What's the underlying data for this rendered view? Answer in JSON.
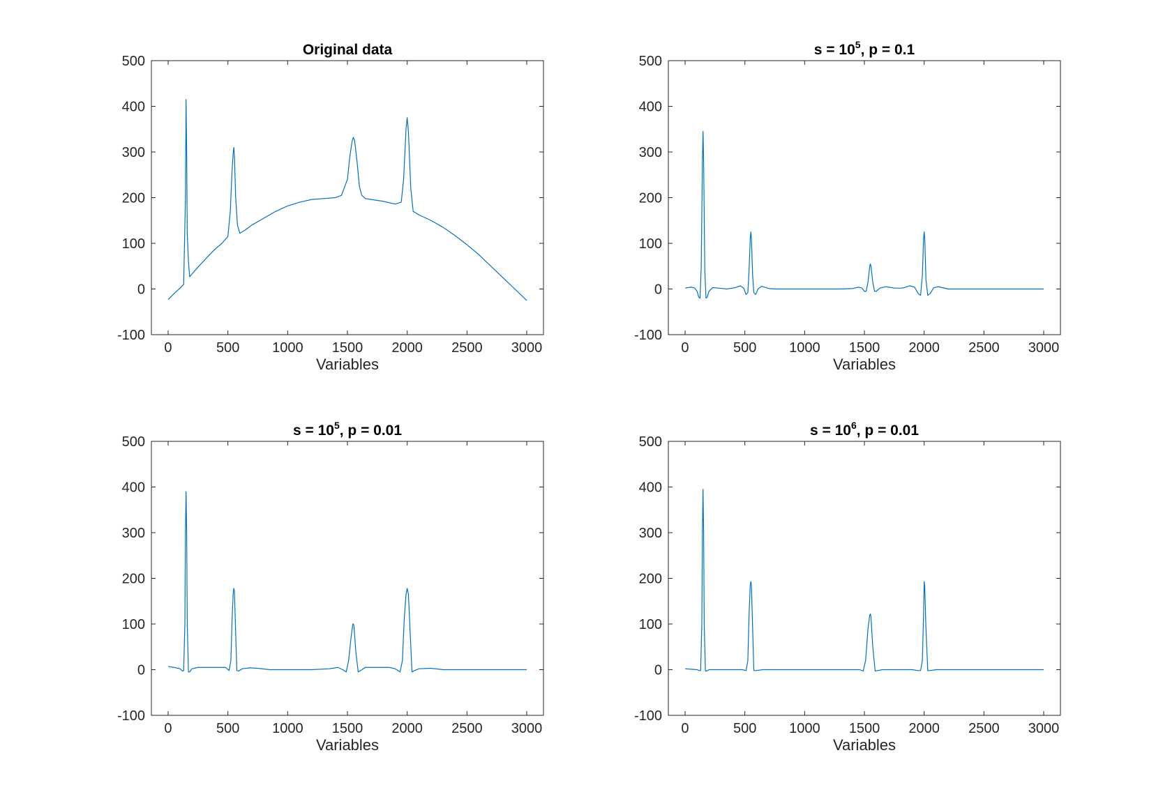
{
  "figure": {
    "background": "#ffffff",
    "line_color": "#0072BD",
    "axis_color": "#262626"
  },
  "chart_data": [
    {
      "type": "line",
      "title": {
        "before": "Original data",
        "sup": "",
        "after": ""
      },
      "xlabel": "Variables",
      "ylabel": "",
      "xlim": [
        -140,
        3140
      ],
      "ylim": [
        -100,
        500
      ],
      "xticks": [
        0,
        500,
        1000,
        1500,
        2000,
        2500,
        3000
      ],
      "yticks": [
        -100,
        0,
        100,
        200,
        300,
        400,
        500
      ],
      "xtick_labels": [
        "0",
        "500",
        "1000",
        "1500",
        "2000",
        "2500",
        "3000"
      ],
      "ytick_labels": [
        "-100",
        "0",
        "100",
        "200",
        "300",
        "400",
        "500"
      ],
      "grid": false,
      "series": [
        {
          "color": "#0072BD",
          "x": [
            0,
            50,
            100,
            130,
            145,
            150,
            155,
            160,
            170,
            180,
            200,
            250,
            300,
            350,
            400,
            450,
            500,
            520,
            535,
            545,
            550,
            555,
            565,
            580,
            600,
            650,
            700,
            800,
            900,
            1000,
            1100,
            1200,
            1300,
            1400,
            1450,
            1500,
            1520,
            1540,
            1550,
            1560,
            1580,
            1600,
            1620,
            1650,
            1700,
            1800,
            1900,
            1950,
            1970,
            1990,
            2000,
            2010,
            2030,
            2050,
            2100,
            2200,
            2300,
            2400,
            2500,
            2600,
            2700,
            2800,
            2900,
            3000
          ],
          "y": [
            -23,
            -10,
            2,
            10,
            200,
            415,
            300,
            120,
            60,
            27,
            33,
            48,
            62,
            76,
            89,
            100,
            115,
            170,
            260,
            300,
            310,
            290,
            200,
            140,
            122,
            130,
            140,
            155,
            170,
            182,
            190,
            196,
            198,
            200,
            205,
            240,
            290,
            325,
            332,
            325,
            280,
            225,
            205,
            198,
            196,
            192,
            186,
            190,
            240,
            350,
            375,
            345,
            220,
            170,
            162,
            150,
            135,
            117,
            97,
            75,
            50,
            25,
            0,
            -25
          ]
        }
      ]
    },
    {
      "type": "line",
      "title": {
        "before": "s = 10",
        "sup": "5",
        "after": ", p = 0.1"
      },
      "xlabel": "Variables",
      "ylabel": "",
      "xlim": [
        -140,
        3140
      ],
      "ylim": [
        -100,
        500
      ],
      "xticks": [
        0,
        500,
        1000,
        1500,
        2000,
        2500,
        3000
      ],
      "yticks": [
        -100,
        0,
        100,
        200,
        300,
        400,
        500
      ],
      "xtick_labels": [
        "0",
        "500",
        "1000",
        "1500",
        "2000",
        "2500",
        "3000"
      ],
      "ytick_labels": [
        "-100",
        "0",
        "100",
        "200",
        "300",
        "400",
        "500"
      ],
      "grid": false,
      "series": [
        {
          "color": "#0072BD",
          "x": [
            0,
            50,
            80,
            100,
            115,
            125,
            135,
            145,
            150,
            155,
            165,
            175,
            185,
            200,
            230,
            280,
            350,
            420,
            460,
            490,
            510,
            525,
            535,
            545,
            550,
            555,
            565,
            575,
            590,
            610,
            640,
            700,
            760,
            900,
            1100,
            1300,
            1400,
            1450,
            1480,
            1500,
            1515,
            1530,
            1545,
            1550,
            1555,
            1570,
            1585,
            1600,
            1630,
            1680,
            1750,
            1820,
            1880,
            1920,
            1950,
            1970,
            1985,
            1995,
            2000,
            2005,
            2015,
            2030,
            2050,
            2080,
            2120,
            2200,
            2300,
            2500,
            2800,
            3000
          ],
          "y": [
            2,
            4,
            2,
            -5,
            -18,
            -20,
            50,
            280,
            345,
            280,
            40,
            -20,
            -18,
            -5,
            3,
            2,
            0,
            3,
            7,
            2,
            -12,
            -8,
            40,
            110,
            125,
            110,
            30,
            -8,
            -12,
            0,
            6,
            1,
            0,
            0,
            0,
            0,
            1,
            4,
            2,
            -5,
            -5,
            15,
            50,
            55,
            50,
            15,
            -5,
            -5,
            2,
            5,
            2,
            2,
            7,
            4,
            -10,
            -14,
            30,
            110,
            125,
            110,
            20,
            -14,
            -10,
            3,
            5,
            0,
            0,
            0,
            0,
            0
          ]
        }
      ]
    },
    {
      "type": "line",
      "title": {
        "before": "s = 10",
        "sup": "5",
        "after": ", p = 0.01"
      },
      "xlabel": "Variables",
      "ylabel": "",
      "xlim": [
        -140,
        3140
      ],
      "ylim": [
        -100,
        500
      ],
      "xticks": [
        0,
        500,
        1000,
        1500,
        2000,
        2500,
        3000
      ],
      "yticks": [
        -100,
        0,
        100,
        200,
        300,
        400,
        500
      ],
      "xtick_labels": [
        "0",
        "500",
        "1000",
        "1500",
        "2000",
        "2500",
        "3000"
      ],
      "ytick_labels": [
        "-100",
        "0",
        "100",
        "200",
        "300",
        "400",
        "500"
      ],
      "grid": false,
      "series": [
        {
          "color": "#0072BD",
          "x": [
            0,
            50,
            100,
            120,
            130,
            140,
            145,
            150,
            155,
            160,
            170,
            180,
            200,
            250,
            300,
            400,
            480,
            510,
            525,
            535,
            545,
            550,
            555,
            565,
            575,
            590,
            620,
            680,
            750,
            850,
            1000,
            1200,
            1350,
            1420,
            1460,
            1490,
            1510,
            1530,
            1545,
            1550,
            1555,
            1570,
            1590,
            1610,
            1650,
            1750,
            1850,
            1900,
            1940,
            1960,
            1975,
            1990,
            2000,
            2010,
            2025,
            2040,
            2060,
            2100,
            2200,
            2300,
            2600,
            3000
          ],
          "y": [
            7,
            5,
            2,
            -3,
            -2,
            100,
            300,
            390,
            300,
            100,
            -5,
            -5,
            2,
            5,
            5,
            5,
            5,
            -2,
            20,
            110,
            170,
            178,
            170,
            80,
            -2,
            -3,
            2,
            4,
            3,
            0,
            0,
            0,
            2,
            5,
            0,
            -5,
            20,
            70,
            100,
            100,
            95,
            40,
            -5,
            -2,
            5,
            5,
            5,
            2,
            -5,
            20,
            110,
            165,
            178,
            165,
            80,
            -5,
            -2,
            2,
            3,
            0,
            0,
            0
          ]
        }
      ]
    },
    {
      "type": "line",
      "title": {
        "before": "s = 10",
        "sup": "6",
        "after": ", p = 0.01"
      },
      "xlabel": "Variables",
      "ylabel": "",
      "xlim": [
        -140,
        3140
      ],
      "ylim": [
        -100,
        500
      ],
      "xticks": [
        0,
        500,
        1000,
        1500,
        2000,
        2500,
        3000
      ],
      "yticks": [
        -100,
        0,
        100,
        200,
        300,
        400,
        500
      ],
      "xtick_labels": [
        "0",
        "500",
        "1000",
        "1500",
        "2000",
        "2500",
        "3000"
      ],
      "ytick_labels": [
        "-100",
        "0",
        "100",
        "200",
        "300",
        "400",
        "500"
      ],
      "grid": false,
      "series": [
        {
          "color": "#0072BD",
          "x": [
            0,
            50,
            100,
            120,
            130,
            140,
            145,
            150,
            155,
            160,
            170,
            180,
            200,
            300,
            400,
            480,
            510,
            525,
            535,
            545,
            550,
            555,
            565,
            575,
            590,
            650,
            800,
            1000,
            1200,
            1400,
            1460,
            1490,
            1510,
            1530,
            1545,
            1550,
            1555,
            1570,
            1590,
            1610,
            1650,
            1800,
            1900,
            1950,
            1970,
            1985,
            1995,
            2000,
            2005,
            2015,
            2030,
            2050,
            2100,
            2300,
            2600,
            3000
          ],
          "y": [
            2,
            1,
            0,
            -2,
            -2,
            100,
            300,
            395,
            300,
            100,
            -3,
            -3,
            0,
            0,
            0,
            0,
            -2,
            20,
            120,
            185,
            193,
            185,
            90,
            -2,
            -2,
            0,
            0,
            0,
            0,
            0,
            0,
            -3,
            20,
            90,
            120,
            122,
            115,
            50,
            -3,
            -2,
            0,
            0,
            0,
            -2,
            -2,
            20,
            120,
            193,
            180,
            90,
            -2,
            -2,
            0,
            0,
            0,
            0
          ]
        }
      ]
    }
  ]
}
